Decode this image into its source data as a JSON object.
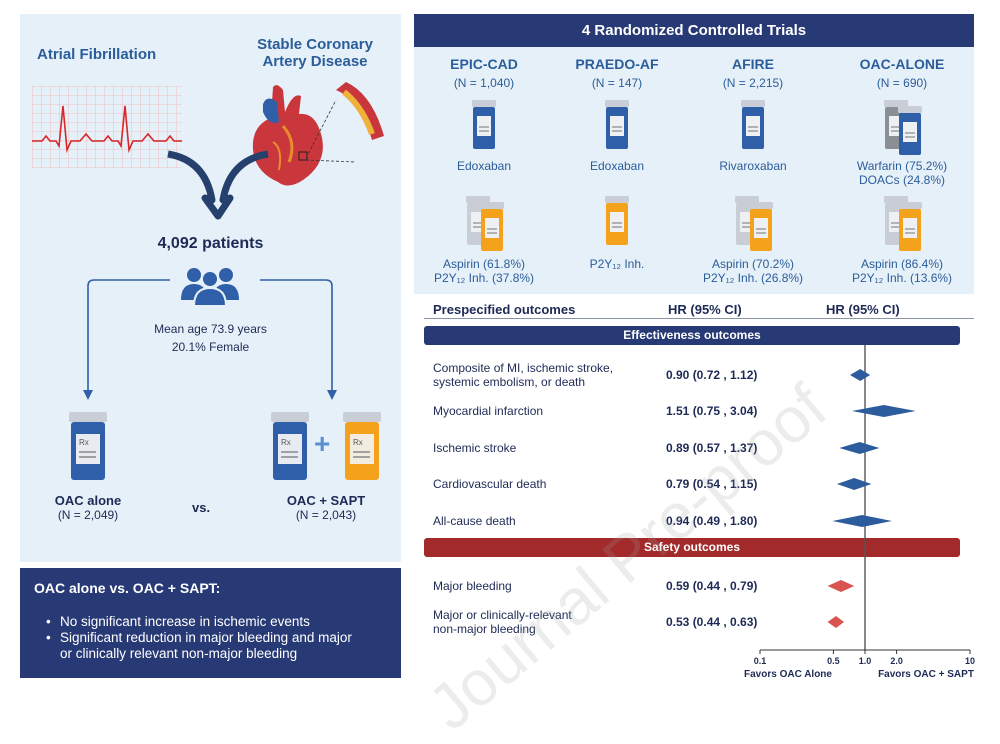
{
  "left": {
    "af_title": "Atrial Fibrillation",
    "cad_title_line1": "Stable Coronary",
    "cad_title_line2": "Artery Disease",
    "patients": "4,092 patients",
    "mean_age": "Mean age 73.9 years",
    "female": "20.1% Female",
    "oac_label": "OAC alone",
    "oac_n": "(N = 2,049)",
    "vs": "vs.",
    "combo_label": "OAC + SAPT",
    "combo_n": "(N = 2,043)",
    "plus": "+"
  },
  "summary": {
    "title": "OAC alone vs. OAC + SAPT:",
    "items": [
      "No significant increase in ischemic events",
      "Significant reduction in major bleeding and major or clinically relevant non-major bleeding"
    ],
    "item2_line1": "Significant reduction in major bleeding and major",
    "item2_line2": "or clinically relevant non-major bleeding"
  },
  "trials": {
    "header": "4 Randomized Controlled Trials",
    "list": [
      {
        "name": "EPIC-CAD",
        "n": "(N = 1,040)",
        "oac": "Edoxaban",
        "oac2": "",
        "sapt1": "Aspirin (61.8%)",
        "sapt2": "P2Y12 Inh. (37.8%)"
      },
      {
        "name": "PRAEDO-AF",
        "n": "(N = 147)",
        "oac": "Edoxaban",
        "oac2": "",
        "sapt1": "P2Y12 Inh.",
        "sapt2": ""
      },
      {
        "name": "AFIRE",
        "n": "(N = 2,215)",
        "oac": "Rivaroxaban",
        "oac2": "",
        "sapt1": "Aspirin (70.2%)",
        "sapt2": "P2Y12 Inh. (26.8%)"
      },
      {
        "name": "OAC-ALONE",
        "n": "(N = 690)",
        "oac": "Warfarin (75.2%)",
        "oac2": "DOACs (24.8%)",
        "sapt1": "Aspirin (86.4%)",
        "sapt2": "P2Y12 Inh. (13.6%)"
      }
    ]
  },
  "forest": {
    "col_outcomes": "Prespecified outcomes",
    "col_hr": "HR (95% CI)",
    "col_plot": "HR (95% CI)",
    "eff_band": "Effectiveness outcomes",
    "safety_band": "Safety outcomes",
    "favors_left": "Favors OAC Alone",
    "favors_right": "Favors OAC + SAPT",
    "colors": {
      "effectiveness": "#2d5c9e",
      "safety": "#d9534f",
      "eff_band": "#283a75",
      "safety_band": "#a32a2a"
    }
  },
  "chart_data": {
    "type": "forest",
    "xscale": "log",
    "xlim": [
      0.1,
      10
    ],
    "reference": 1.0,
    "ticks": [
      "0.1",
      "0.5",
      "1.0",
      "2.0",
      "10"
    ],
    "tick_values": [
      0.1,
      0.5,
      1.0,
      2.0,
      10
    ],
    "rows": [
      {
        "group": "effectiveness",
        "label": "Composite of MI, ischemic stroke,",
        "label2": "systemic embolism, or death",
        "hr": 0.9,
        "lo": 0.72,
        "hi": 1.12,
        "text": "0.90 (0.72 , 1.12)"
      },
      {
        "group": "effectiveness",
        "label": "Myocardial infarction",
        "label2": "",
        "hr": 1.51,
        "lo": 0.75,
        "hi": 3.04,
        "text": "1.51 (0.75 , 3.04)"
      },
      {
        "group": "effectiveness",
        "label": "Ischemic stroke",
        "label2": "",
        "hr": 0.89,
        "lo": 0.57,
        "hi": 1.37,
        "text": "0.89 (0.57 , 1.37)"
      },
      {
        "group": "effectiveness",
        "label": "Cardiovascular death",
        "label2": "",
        "hr": 0.79,
        "lo": 0.54,
        "hi": 1.15,
        "text": "0.79 (0.54 , 1.15)"
      },
      {
        "group": "effectiveness",
        "label": "All-cause death",
        "label2": "",
        "hr": 0.94,
        "lo": 0.49,
        "hi": 1.8,
        "text": "0.94 (0.49 , 1.80)"
      },
      {
        "group": "safety",
        "label": "Major bleeding",
        "label2": "",
        "hr": 0.59,
        "lo": 0.44,
        "hi": 0.79,
        "text": "0.59 (0.44 , 0.79)"
      },
      {
        "group": "safety",
        "label": "Major or clinically-relevant",
        "label2": "non-major bleeding",
        "hr": 0.53,
        "lo": 0.44,
        "hi": 0.63,
        "text": "0.53 (0.44 , 0.63)"
      }
    ]
  }
}
